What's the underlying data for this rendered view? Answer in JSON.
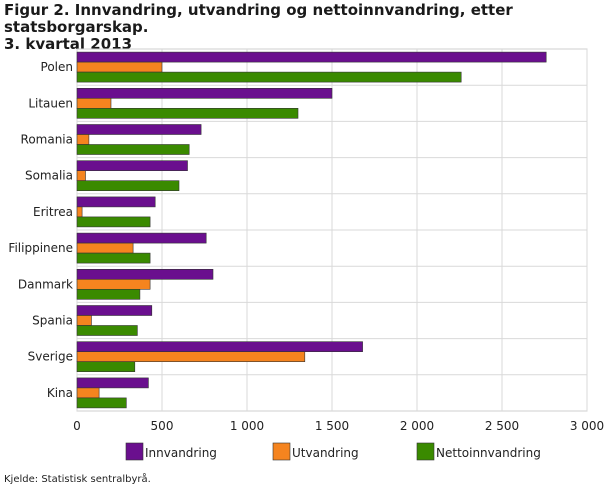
{
  "title_line1": "Figur 2. Innvandring, utvandring og nettoinnvandring, etter statsborgarskap.",
  "title_line2": "3. kvartal 2013",
  "source": "Kjelde: Statistisk sentralbyrå.",
  "colors": {
    "Innvandring": "#6a0f8e",
    "Utvandring": "#f5841f",
    "Nettoinnvandring": "#3a8a00"
  },
  "chart_data": {
    "type": "bar",
    "orientation": "horizontal",
    "categories": [
      "Polen",
      "Litauen",
      "Romania",
      "Somalia",
      "Eritrea",
      "Filippinene",
      "Danmark",
      "Spania",
      "Sverige",
      "Kina"
    ],
    "series": [
      {
        "name": "Innvandring",
        "values": [
          2760,
          1500,
          730,
          650,
          460,
          760,
          800,
          440,
          1680,
          420
        ]
      },
      {
        "name": "Utvandring",
        "values": [
          500,
          200,
          70,
          50,
          30,
          330,
          430,
          85,
          1340,
          130
        ]
      },
      {
        "name": "Nettoinnvandring",
        "values": [
          2260,
          1300,
          660,
          600,
          430,
          430,
          370,
          355,
          340,
          290
        ]
      }
    ],
    "xlim": [
      0,
      3000
    ],
    "xticks": [
      0,
      500,
      1000,
      1500,
      2000,
      2500,
      3000
    ],
    "xtick_labels": [
      "0",
      "500",
      "1 000",
      "1 500",
      "2 000",
      "2 500",
      "3 000"
    ],
    "grid": "vertical",
    "legend": "bottom"
  }
}
